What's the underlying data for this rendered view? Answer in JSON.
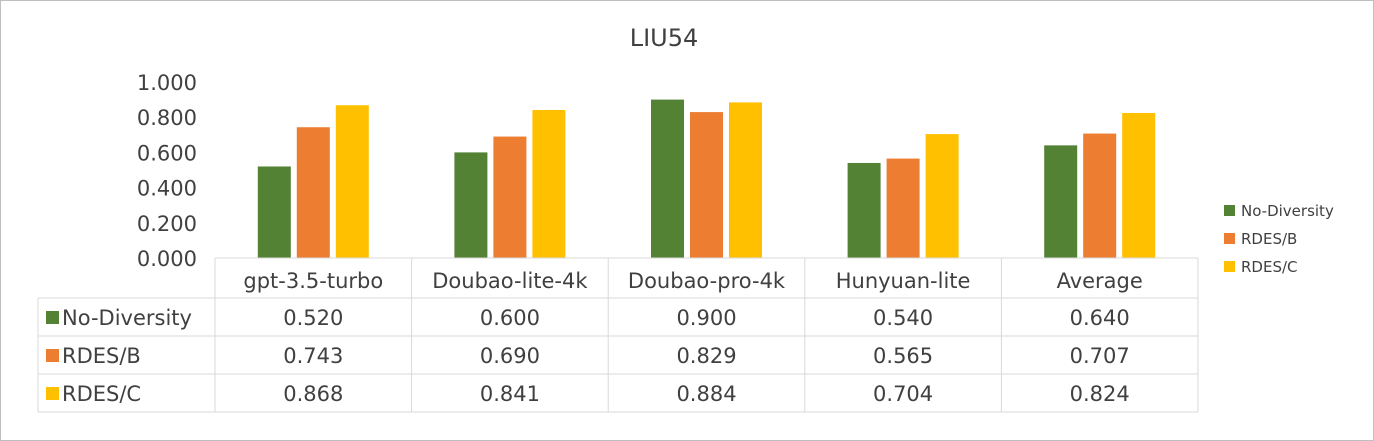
{
  "chart_data": {
    "type": "bar",
    "title": "LIU54",
    "categories": [
      "gpt-3.5-turbo",
      "Doubao-lite-4k",
      "Doubao-pro-4k",
      "Hunyuan-lite",
      "Average"
    ],
    "series": [
      {
        "name": "No-Diversity",
        "color": "#548235",
        "values": [
          0.52,
          0.6,
          0.9,
          0.54,
          0.64
        ],
        "labels": [
          "0.520",
          "0.600",
          "0.900",
          "0.540",
          "0.640"
        ]
      },
      {
        "name": "RDES/B",
        "color": "#ed7d31",
        "values": [
          0.743,
          0.69,
          0.829,
          0.565,
          0.707
        ],
        "labels": [
          "0.743",
          "0.690",
          "0.829",
          "0.565",
          "0.707"
        ]
      },
      {
        "name": "RDES/C",
        "color": "#ffc000",
        "values": [
          0.868,
          0.841,
          0.884,
          0.704,
          0.824
        ],
        "labels": [
          "0.868",
          "0.841",
          "0.884",
          "0.704",
          "0.824"
        ]
      }
    ],
    "ylim": [
      0,
      1
    ],
    "yticks": [
      "0.000",
      "0.200",
      "0.400",
      "0.600",
      "0.800",
      "1.000"
    ],
    "ytick_values": [
      0,
      0.2,
      0.4,
      0.6,
      0.8,
      1.0
    ],
    "grid": false,
    "legend": "right",
    "data_table": true
  }
}
